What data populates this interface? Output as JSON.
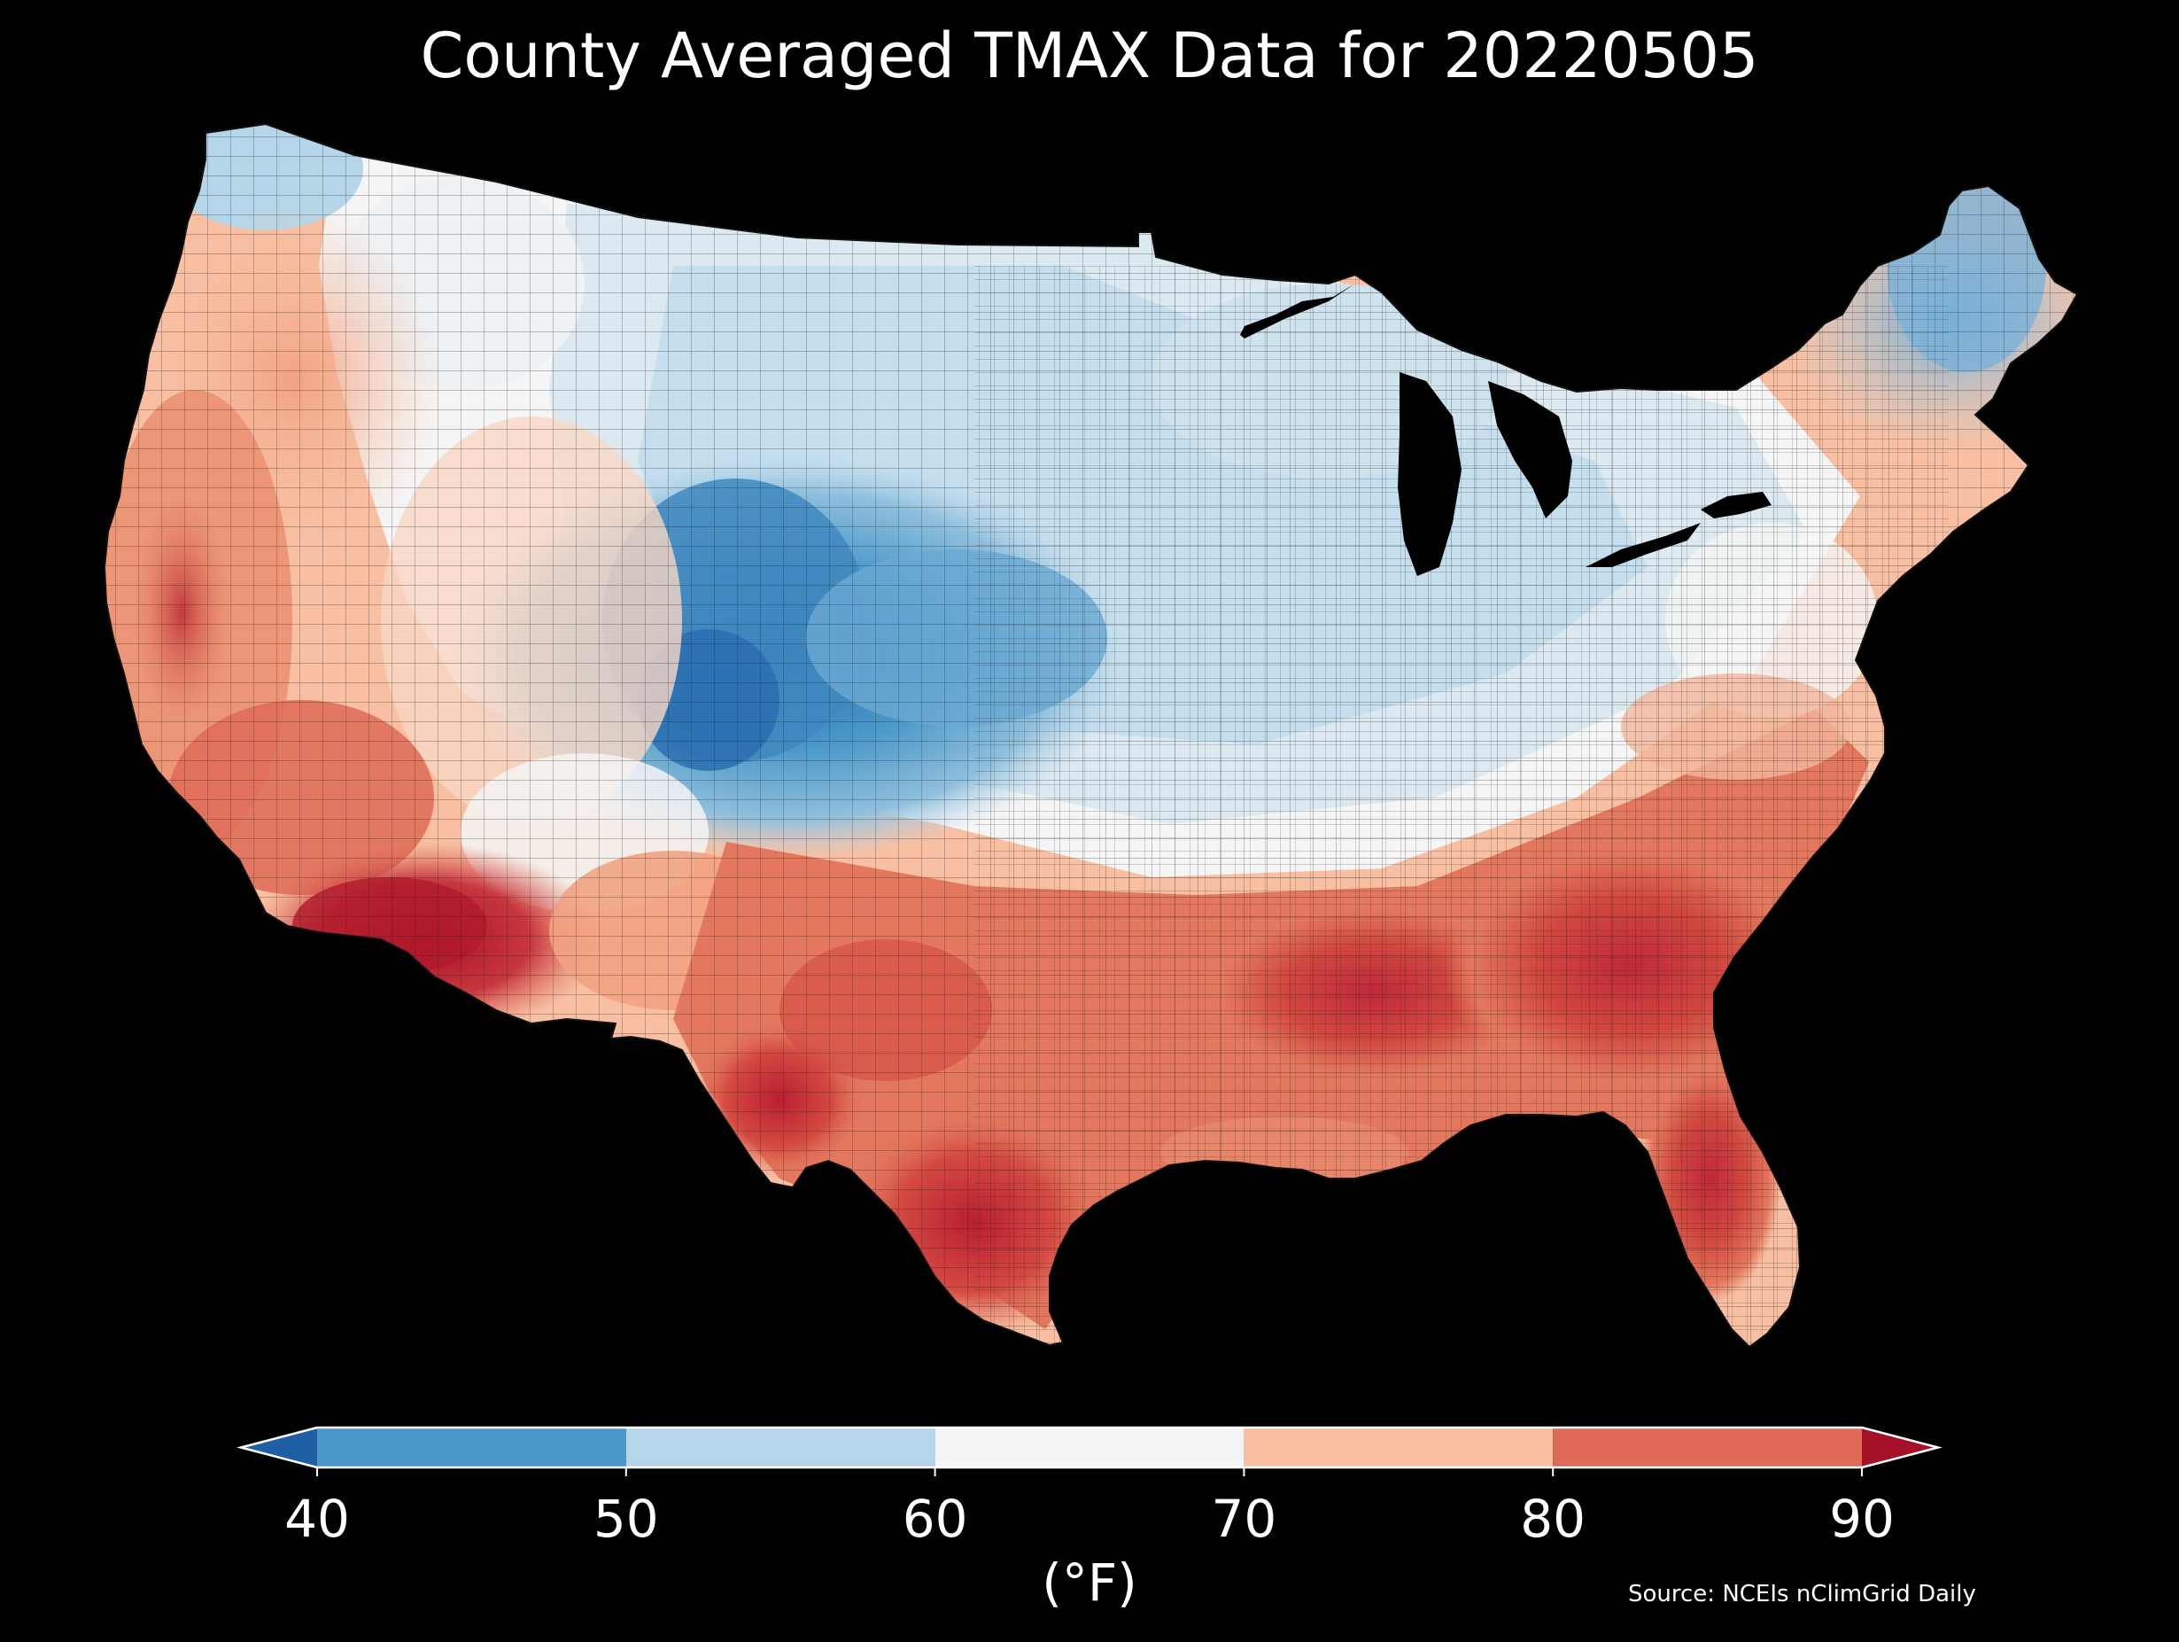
{
  "title": "County Averaged TMAX Data for 20220505",
  "colorbar": {
    "unit": "(°F)",
    "ticks": [
      "40",
      "50",
      "60",
      "70",
      "80",
      "90"
    ],
    "bins": [
      {
        "from": "below",
        "to": 40,
        "color": "#1f5fa6"
      },
      {
        "from": 40,
        "to": 50,
        "color": "#4a98c9"
      },
      {
        "from": 50,
        "to": 60,
        "color": "#b5d6e9"
      },
      {
        "from": 60,
        "to": 70,
        "color": "#f5f5f5"
      },
      {
        "from": 70,
        "to": 80,
        "color": "#f8bfa2"
      },
      {
        "from": 80,
        "to": 90,
        "color": "#df6b57"
      },
      {
        "from": 90,
        "to": "above",
        "color": "#a51126"
      }
    ]
  },
  "source": "Source: NCEIs nClimGrid Daily",
  "colors": {
    "background": "#000000",
    "text": "#ffffff",
    "county_border": "#1a1a1a"
  }
}
